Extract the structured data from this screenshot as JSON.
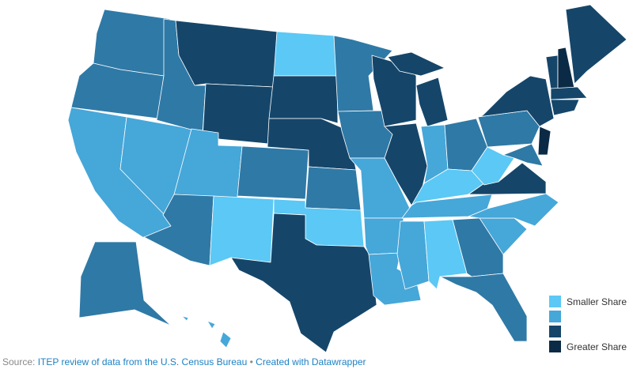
{
  "colors": [
    "#5bc8f5",
    "#46a7d9",
    "#2f79a6",
    "#15466a",
    "#0b2a45"
  ],
  "legend": {
    "items": [
      {
        "label": "Smaller Share",
        "level": 0
      },
      {
        "label": "",
        "level": 1
      },
      {
        "label": "",
        "level": 3
      },
      {
        "label": "Greater Share",
        "level": 4
      }
    ]
  },
  "states": {
    "WA": 2,
    "OR": 2,
    "CA": 1,
    "NV": 1,
    "ID": 2,
    "MT": 3,
    "WY": 3,
    "UT": 1,
    "CO": 2,
    "AZ": 2,
    "NM": 0,
    "ND": 0,
    "SD": 3,
    "NE": 3,
    "KS": 2,
    "OK": 0,
    "TX": 3,
    "MN": 2,
    "IA": 2,
    "MO": 1,
    "AR": 1,
    "LA": 1,
    "WI": 3,
    "IL": 3,
    "MI": 3,
    "IN": 1,
    "OH": 2,
    "KY": 0,
    "TN": 1,
    "MS": 1,
    "AL": 0,
    "GA": 2,
    "FL": 2,
    "SC": 1,
    "NC": 1,
    "VA": 3,
    "WV": 0,
    "PA": 2,
    "NY": 3,
    "MD": 2,
    "NJ": 4,
    "VT": 3,
    "NH": 4,
    "ME": 3,
    "MA": 3,
    "CT": 3,
    "AK": 2,
    "HI": 1
  },
  "source": {
    "prefix": "Source: ",
    "text": "ITEP review of data from the U.S. Census Bureau",
    "separator": " • ",
    "credit": "Created with Datawrapper"
  }
}
